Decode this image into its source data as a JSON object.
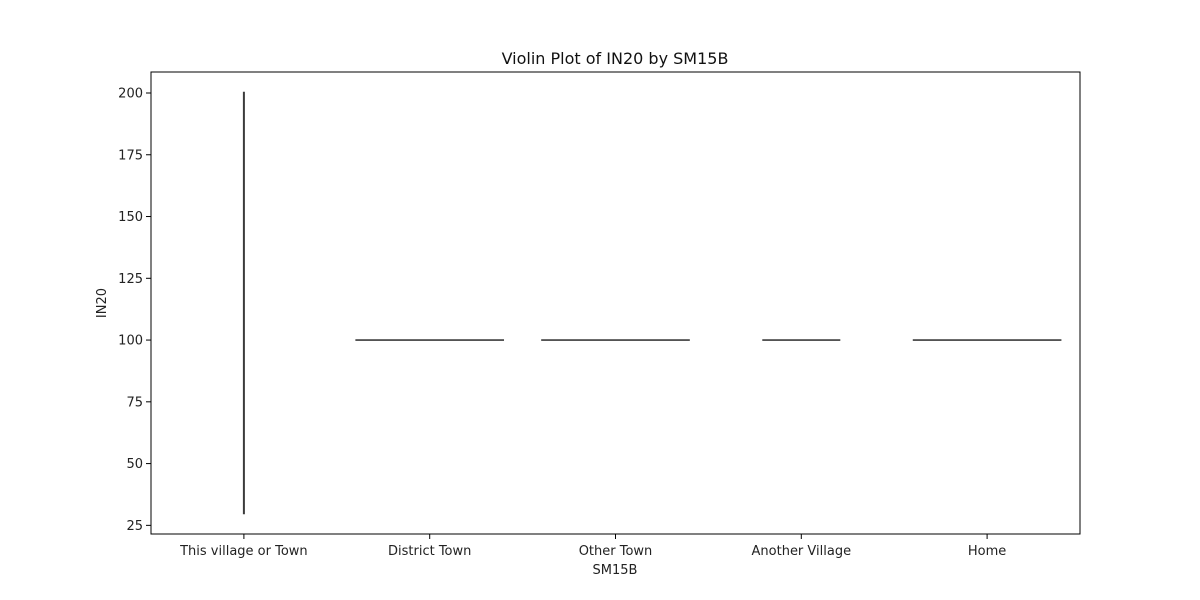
{
  "chart_data": {
    "type": "violin",
    "title": "Violin Plot of IN20 by SM15B",
    "xlabel": "SM15B",
    "ylabel": "IN20",
    "categories": [
      "This village or Town",
      "District Town",
      "Other Town",
      "Another Village",
      "Home"
    ],
    "yticks": [
      25,
      50,
      75,
      100,
      125,
      150,
      175,
      200
    ],
    "ytick_labels": [
      "25",
      "50",
      "75",
      "100",
      "125",
      "150",
      "175",
      "200"
    ],
    "ylim": [
      21.5,
      208.5
    ],
    "violins": [
      {
        "category": "This village or Town",
        "shape": "vertical",
        "min": 29.5,
        "max": 200.5
      },
      {
        "category": "District Town",
        "shape": "horizontal",
        "value": 100,
        "width": 0.8
      },
      {
        "category": "Other Town",
        "shape": "horizontal",
        "value": 100,
        "width": 0.8
      },
      {
        "category": "Another Village",
        "shape": "horizontal",
        "value": 100,
        "width": 0.42
      },
      {
        "category": "Home",
        "shape": "horizontal",
        "value": 100,
        "width": 0.8
      }
    ],
    "grid": false,
    "colors": {
      "violin": "#3b3b3b",
      "axis": "#000000"
    }
  }
}
